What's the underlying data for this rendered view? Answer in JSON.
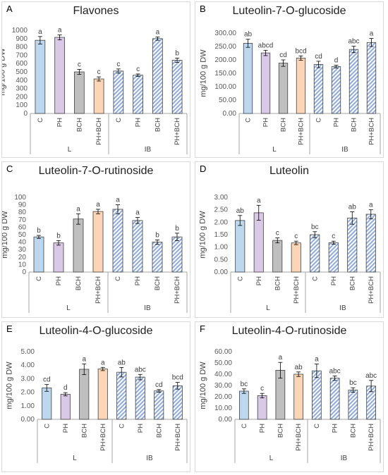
{
  "colors": {
    "C": "#bdd7ee",
    "PH": "#d9c8e6",
    "BCH": "#bfbfbf",
    "PH+BCH": "#fbd5b5",
    "hatch": "#8faadc",
    "axis": "#a6a6a6",
    "gridline": "#d9d9d9",
    "bar_outline": "#404040"
  },
  "chart_data": [
    {
      "letter": "A",
      "type": "bar",
      "title": "Flavones",
      "ylabel": "mg/100 g DW",
      "ylim": [
        0,
        1000
      ],
      "yticks": [
        "0",
        "100",
        "200",
        "300",
        "400",
        "500",
        "600",
        "700",
        "800",
        "900",
        "1000"
      ],
      "categories": [
        "C",
        "PH",
        "BCH",
        "PH+BCH",
        "C",
        "PH",
        "BCH",
        "PH+BCH"
      ],
      "groups": [
        "L",
        "IB"
      ],
      "values": [
        880,
        915,
        500,
        415,
        510,
        460,
        900,
        640
      ],
      "errors": [
        45,
        30,
        30,
        25,
        25,
        15,
        20,
        25
      ],
      "letters": [
        "a",
        "a",
        "c",
        "c",
        "c",
        "c",
        "a",
        "b"
      ]
    },
    {
      "letter": "B",
      "type": "bar",
      "title": "Luteolin-7-O-glucoside",
      "ylabel": "mg/100 g DW",
      "ylim": [
        0,
        300
      ],
      "yticks": [
        "0.00",
        "50.00",
        "100.00",
        "150.00",
        "200.00",
        "250.00",
        "300.00"
      ],
      "categories": [
        "C",
        "PH",
        "BCH",
        "PH+BCH",
        "C",
        "PH",
        "BCH",
        "PH+BCH"
      ],
      "groups": [
        "L",
        "IB"
      ],
      "values": [
        262,
        226,
        188,
        207,
        183,
        175,
        239,
        265
      ],
      "errors": [
        15,
        10,
        12,
        8,
        12,
        5,
        12,
        15
      ],
      "letters": [
        "ab",
        "abcd",
        "cd",
        "bcd",
        "cd",
        "d",
        "abc",
        "a"
      ]
    },
    {
      "letter": "C",
      "type": "bar",
      "title": "Luteolin-7-O-rutinoside",
      "ylabel": "mg/100 g DW",
      "ylim": [
        0,
        100
      ],
      "yticks": [
        "0",
        "10",
        "20",
        "30",
        "40",
        "50",
        "60",
        "70",
        "80",
        "90",
        "100"
      ],
      "categories": [
        "C",
        "PH",
        "BCH",
        "PH+BCH",
        "C",
        "PH",
        "BCH",
        "PH+BCH"
      ],
      "groups": [
        "L",
        "IB"
      ],
      "values": [
        47,
        39,
        71,
        81,
        84,
        69,
        40,
        47
      ],
      "errors": [
        2,
        3,
        7,
        3,
        6,
        4,
        3,
        5
      ],
      "letters": [
        "b",
        "b",
        "a",
        "a",
        "a",
        "a",
        "b",
        "b"
      ]
    },
    {
      "letter": "D",
      "type": "bar",
      "title": "Luteolin",
      "ylabel": "mg/100 g DW",
      "ylim": [
        0,
        3
      ],
      "yticks": [
        "0.00",
        "0.50",
        "1.00",
        "1.50",
        "2.00",
        "2.50",
        "3.00"
      ],
      "categories": [
        "C",
        "PH",
        "BCH",
        "PH+BCH",
        "C",
        "PH",
        "BCH",
        "PH+BCH"
      ],
      "groups": [
        "L",
        "IB"
      ],
      "values": [
        2.07,
        2.38,
        1.27,
        1.17,
        1.5,
        1.18,
        2.17,
        2.32
      ],
      "errors": [
        0.2,
        0.3,
        0.1,
        0.07,
        0.12,
        0.06,
        0.25,
        0.18
      ],
      "letters": [
        "ab",
        "a",
        "c",
        "c",
        "bc",
        "c",
        "ab",
        "a"
      ]
    },
    {
      "letter": "E",
      "type": "bar",
      "title": "Luteolin-4-O-glucoside",
      "ylabel": "mg/100 g DW",
      "ylim": [
        0,
        5
      ],
      "yticks": [
        "0.00",
        "1.00",
        "2.00",
        "3.00",
        "4.00",
        "5.00"
      ],
      "categories": [
        "C",
        "PH",
        "BCH",
        "PH+BCH",
        "C",
        "PH",
        "BCH",
        "PH+BCH"
      ],
      "groups": [
        "L",
        "IB"
      ],
      "values": [
        2.32,
        1.85,
        3.7,
        3.72,
        3.48,
        3.12,
        2.1,
        2.48
      ],
      "errors": [
        0.25,
        0.12,
        0.4,
        0.12,
        0.35,
        0.2,
        0.1,
        0.25
      ],
      "letters": [
        "cd",
        "d",
        "a",
        "a",
        "ab",
        "abc",
        "cd",
        "bcd"
      ]
    },
    {
      "letter": "F",
      "type": "bar",
      "title": "Luteolin-4-O-rutinoside",
      "ylabel": "mg/100 g DW",
      "ylim": [
        0,
        60
      ],
      "yticks": [
        "0.00",
        "10.00",
        "20.00",
        "30.00",
        "40.00",
        "50.00",
        "60.00"
      ],
      "categories": [
        "C",
        "PH",
        "BCH",
        "PH+BCH",
        "C",
        "PH",
        "BCH",
        "PH+BCH"
      ],
      "groups": [
        "L",
        "IB"
      ],
      "values": [
        25,
        21,
        43.5,
        40,
        43,
        36.5,
        26,
        29.5
      ],
      "errors": [
        2,
        2,
        7,
        2,
        6,
        2,
        2,
        5
      ],
      "letters": [
        "bc",
        "c",
        "a",
        "ab",
        "a",
        "abc",
        "bc",
        "abc"
      ]
    }
  ]
}
